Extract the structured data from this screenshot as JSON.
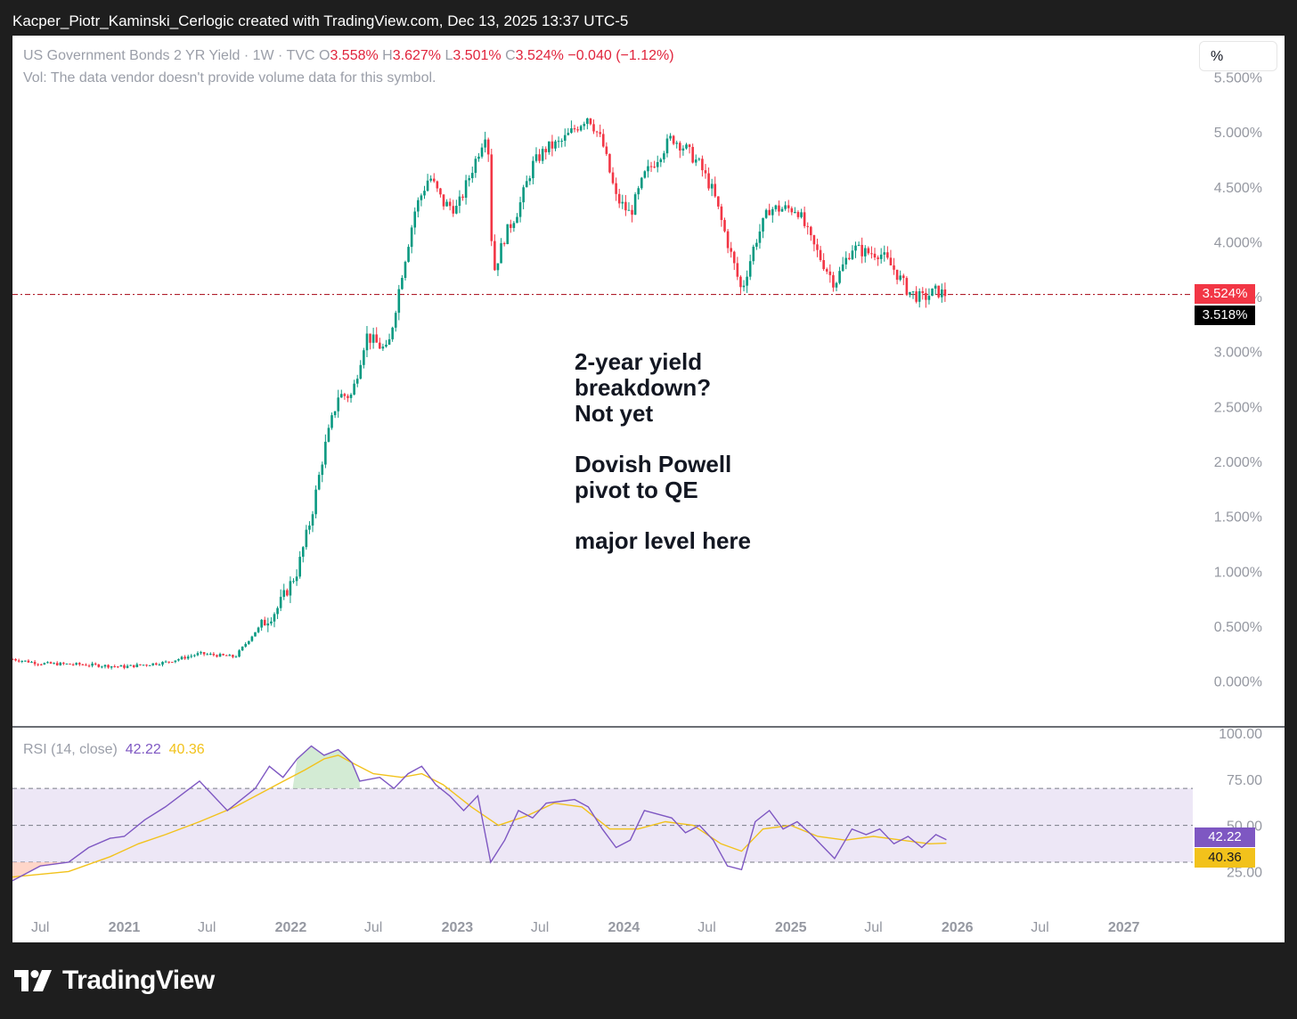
{
  "header": {
    "caption": "Kacper_Piotr_Kaminski_Cerlogic created with TradingView.com, Dec 13, 2025 13:37 UTC-5"
  },
  "legend": {
    "symbol": "US Government Bonds 2 YR Yield · 1W · TVC",
    "o_label": "O",
    "o_value": "3.558%",
    "h_label": "H",
    "h_value": "3.627%",
    "l_label": "L",
    "l_value": "3.501%",
    "c_label": "C",
    "c_value": "3.524%",
    "change": "−0.040 (−1.12%)",
    "volume_note": "Vol: The data vendor doesn't provide volume data for this symbol."
  },
  "scale_button": {
    "label": "%"
  },
  "annotation": {
    "lines": [
      "2-year yield",
      "breakdown?",
      "Not yet",
      "",
      "Dovish Powell",
      "pivot to QE",
      "",
      "major level here"
    ]
  },
  "price_tags": {
    "last": "3.524%",
    "prev_close": "3.518%"
  },
  "rsi_legend": {
    "label": "RSI (14, close)",
    "rsi_value": "42.22",
    "ma_value": "40.36"
  },
  "rsi_tags": {
    "rsi": "42.22",
    "ma": "40.36"
  },
  "brand": {
    "name": "TradingView"
  },
  "colors": {
    "up": "#089981",
    "down": "#f23645",
    "rsi": "#7e57c2",
    "rsi_ma": "#f2c21b",
    "last_price": "#f23645",
    "prev_close_bg": "#000000",
    "band_fill": "#ede7f6"
  },
  "chart_data": [
    {
      "type": "candlestick",
      "title": "US Government Bonds 2 YR Yield · 1W · TVC",
      "y_unit": "%",
      "ylim": [
        -0.5,
        5.7
      ],
      "y_ticks": [
        "5.500%",
        "5.000%",
        "4.500%",
        "4.000%",
        "3.500%",
        "3.000%",
        "2.500%",
        "2.000%",
        "1.500%",
        "1.000%",
        "0.500%",
        "0.000%"
      ],
      "y_tick_values": [
        5.5,
        5.0,
        4.5,
        4.0,
        3.5,
        3.0,
        2.5,
        2.0,
        1.5,
        1.0,
        0.5,
        0.0
      ],
      "xlim": [
        "2020-05-01",
        "2027-06-01"
      ],
      "x_ticks": [
        {
          "label": "Jul",
          "date": "2020-07-01"
        },
        {
          "label": "2021",
          "date": "2021-01-01"
        },
        {
          "label": "Jul",
          "date": "2021-07-01"
        },
        {
          "label": "2022",
          "date": "2022-01-01"
        },
        {
          "label": "Jul",
          "date": "2022-07-01"
        },
        {
          "label": "2023",
          "date": "2023-01-01"
        },
        {
          "label": "Jul",
          "date": "2023-07-01"
        },
        {
          "label": "2024",
          "date": "2024-01-01"
        },
        {
          "label": "Jul",
          "date": "2024-07-01"
        },
        {
          "label": "2025",
          "date": "2025-01-01"
        },
        {
          "label": "Jul",
          "date": "2025-07-01"
        },
        {
          "label": "2026",
          "date": "2026-01-01"
        },
        {
          "label": "Jul",
          "date": "2026-07-01"
        },
        {
          "label": "2027",
          "date": "2027-01-01"
        }
      ],
      "horizontal_line": 3.52,
      "last_price": 3.524,
      "prev_close": 3.518,
      "close_path": [
        [
          "2020-05-01",
          0.2
        ],
        [
          "2020-07-01",
          0.16
        ],
        [
          "2020-10-01",
          0.15
        ],
        [
          "2021-01-01",
          0.13
        ],
        [
          "2021-04-01",
          0.17
        ],
        [
          "2021-06-15",
          0.25
        ],
        [
          "2021-09-01",
          0.22
        ],
        [
          "2021-10-15",
          0.45
        ],
        [
          "2021-12-01",
          0.65
        ],
        [
          "2022-01-15",
          1.0
        ],
        [
          "2022-02-15",
          1.5
        ],
        [
          "2022-03-15",
          2.1
        ],
        [
          "2022-04-15",
          2.6
        ],
        [
          "2022-05-15",
          2.6
        ],
        [
          "2022-06-15",
          3.15
        ],
        [
          "2022-07-15",
          3.05
        ],
        [
          "2022-08-01",
          3.0
        ],
        [
          "2022-09-01",
          3.7
        ],
        [
          "2022-10-01",
          4.3
        ],
        [
          "2022-11-01",
          4.6
        ],
        [
          "2022-12-01",
          4.35
        ],
        [
          "2023-01-01",
          4.3
        ],
        [
          "2023-02-15",
          4.8
        ],
        [
          "2023-03-08",
          5.05
        ],
        [
          "2023-03-20",
          3.7
        ],
        [
          "2023-04-15",
          4.05
        ],
        [
          "2023-05-15",
          4.3
        ],
        [
          "2023-06-15",
          4.7
        ],
        [
          "2023-07-15",
          4.85
        ],
        [
          "2023-08-15",
          4.9
        ],
        [
          "2023-10-15",
          5.15
        ],
        [
          "2023-11-15",
          4.9
        ],
        [
          "2023-12-15",
          4.4
        ],
        [
          "2024-01-15",
          4.25
        ],
        [
          "2024-02-15",
          4.6
        ],
        [
          "2024-04-15",
          4.95
        ],
        [
          "2024-05-15",
          4.85
        ],
        [
          "2024-06-15",
          4.7
        ],
        [
          "2024-07-15",
          4.45
        ],
        [
          "2024-08-15",
          4.0
        ],
        [
          "2024-09-15",
          3.55
        ],
        [
          "2024-10-15",
          4.0
        ],
        [
          "2024-11-15",
          4.3
        ],
        [
          "2024-12-15",
          4.3
        ],
        [
          "2025-01-15",
          4.3
        ],
        [
          "2025-02-15",
          4.0
        ],
        [
          "2025-04-07",
          3.62
        ],
        [
          "2025-05-15",
          3.95
        ],
        [
          "2025-06-15",
          3.9
        ],
        [
          "2025-07-15",
          3.9
        ],
        [
          "2025-08-15",
          3.75
        ],
        [
          "2025-09-15",
          3.55
        ],
        [
          "2025-10-15",
          3.48
        ],
        [
          "2025-11-15",
          3.55
        ],
        [
          "2025-12-08",
          3.52
        ]
      ]
    },
    {
      "type": "line",
      "title": "RSI (14, close)",
      "ylim": [
        0,
        100
      ],
      "y_ticks": [
        "100.00",
        "75.00",
        "50.00",
        "25.00"
      ],
      "y_tick_values": [
        100,
        75,
        50,
        25
      ],
      "bands": [
        30,
        50,
        70
      ],
      "series": [
        {
          "name": "RSI (14, close)",
          "points": [
            [
              "2020-05-01",
              20
            ],
            [
              "2020-07-01",
              28
            ],
            [
              "2020-09-01",
              30
            ],
            [
              "2020-10-15",
              38
            ],
            [
              "2020-12-01",
              43
            ],
            [
              "2021-01-01",
              44
            ],
            [
              "2021-02-15",
              53
            ],
            [
              "2021-04-01",
              60
            ],
            [
              "2021-06-15",
              74
            ],
            [
              "2021-08-15",
              58
            ],
            [
              "2021-10-15",
              70
            ],
            [
              "2021-11-15",
              82
            ],
            [
              "2021-12-15",
              76
            ],
            [
              "2022-01-15",
              86
            ],
            [
              "2022-02-15",
              93
            ],
            [
              "2022-03-15",
              88
            ],
            [
              "2022-04-15",
              91
            ],
            [
              "2022-05-15",
              84
            ],
            [
              "2022-06-01",
              74
            ],
            [
              "2022-07-15",
              76
            ],
            [
              "2022-08-15",
              70
            ],
            [
              "2022-09-15",
              78
            ],
            [
              "2022-10-15",
              82
            ],
            [
              "2022-11-15",
              72
            ],
            [
              "2022-12-15",
              66
            ],
            [
              "2023-01-15",
              58
            ],
            [
              "2023-02-15",
              66
            ],
            [
              "2023-03-15",
              30
            ],
            [
              "2023-04-15",
              42
            ],
            [
              "2023-05-15",
              58
            ],
            [
              "2023-06-15",
              54
            ],
            [
              "2023-07-15",
              62
            ],
            [
              "2023-09-15",
              64
            ],
            [
              "2023-10-15",
              60
            ],
            [
              "2023-11-15",
              48
            ],
            [
              "2023-12-15",
              38
            ],
            [
              "2024-01-15",
              42
            ],
            [
              "2024-02-15",
              58
            ],
            [
              "2024-04-15",
              54
            ],
            [
              "2024-05-15",
              46
            ],
            [
              "2024-06-15",
              50
            ],
            [
              "2024-07-15",
              42
            ],
            [
              "2024-08-15",
              28
            ],
            [
              "2024-09-15",
              26
            ],
            [
              "2024-10-15",
              52
            ],
            [
              "2024-11-15",
              58
            ],
            [
              "2024-12-15",
              48
            ],
            [
              "2025-01-15",
              52
            ],
            [
              "2025-02-15",
              45
            ],
            [
              "2025-04-07",
              32
            ],
            [
              "2025-05-15",
              48
            ],
            [
              "2025-06-15",
              45
            ],
            [
              "2025-07-15",
              48
            ],
            [
              "2025-08-15",
              40
            ],
            [
              "2025-09-15",
              44
            ],
            [
              "2025-10-15",
              38
            ],
            [
              "2025-11-15",
              45
            ],
            [
              "2025-12-08",
              42.22
            ]
          ]
        },
        {
          "name": "RSI-based MA",
          "points": [
            [
              "2020-05-01",
              22
            ],
            [
              "2020-09-01",
              25
            ],
            [
              "2020-12-01",
              33
            ],
            [
              "2021-02-01",
              40
            ],
            [
              "2021-04-01",
              45
            ],
            [
              "2021-06-15",
              52
            ],
            [
              "2021-09-01",
              60
            ],
            [
              "2021-12-01",
              72
            ],
            [
              "2022-02-01",
              80
            ],
            [
              "2022-03-15",
              86
            ],
            [
              "2022-04-15",
              88
            ],
            [
              "2022-05-15",
              84
            ],
            [
              "2022-07-01",
              78
            ],
            [
              "2022-09-01",
              76
            ],
            [
              "2022-10-15",
              78
            ],
            [
              "2022-12-01",
              72
            ],
            [
              "2023-02-01",
              60
            ],
            [
              "2023-04-01",
              50
            ],
            [
              "2023-06-01",
              55
            ],
            [
              "2023-08-01",
              62
            ],
            [
              "2023-10-01",
              60
            ],
            [
              "2023-12-01",
              48
            ],
            [
              "2024-02-01",
              48
            ],
            [
              "2024-04-01",
              52
            ],
            [
              "2024-06-01",
              50
            ],
            [
              "2024-08-01",
              40
            ],
            [
              "2024-09-15",
              36
            ],
            [
              "2024-11-01",
              48
            ],
            [
              "2025-01-01",
              50
            ],
            [
              "2025-03-01",
              44
            ],
            [
              "2025-05-01",
              42
            ],
            [
              "2025-07-01",
              44
            ],
            [
              "2025-09-01",
              42
            ],
            [
              "2025-11-01",
              40
            ],
            [
              "2025-12-08",
              40.36
            ]
          ]
        }
      ]
    }
  ]
}
